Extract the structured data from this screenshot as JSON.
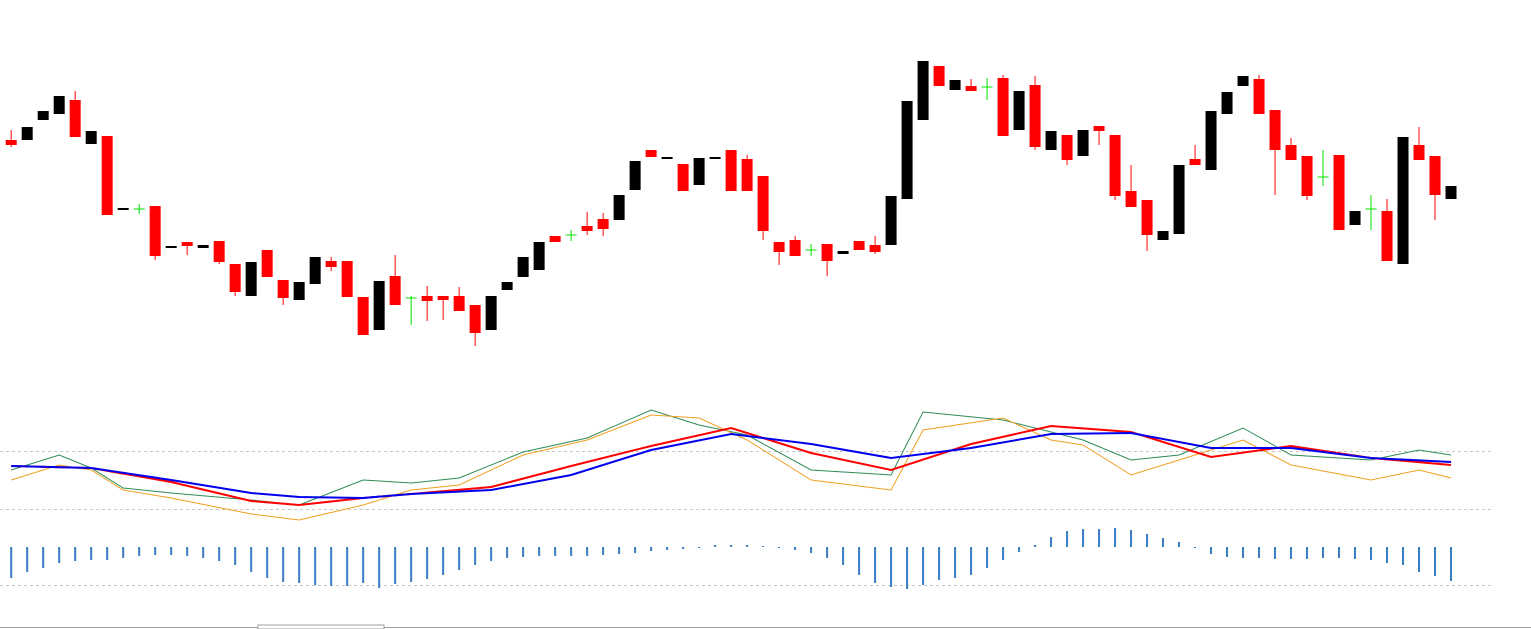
{
  "chart_data": [
    {
      "type": "candlestick",
      "x": [
        0,
        1,
        2,
        3,
        4,
        5,
        6,
        7,
        8,
        9,
        10,
        11,
        12,
        13,
        14,
        15,
        16,
        17,
        18,
        19,
        20,
        21,
        22,
        23,
        24,
        25,
        26,
        27,
        28,
        29,
        30,
        31,
        32,
        33,
        34,
        35,
        36,
        37,
        38,
        39,
        40,
        41,
        42,
        43,
        44,
        45,
        46,
        47,
        48,
        49,
        50,
        51,
        52,
        53,
        54,
        55,
        56,
        57,
        58,
        59,
        60,
        61,
        62,
        63,
        64,
        65,
        66,
        67,
        68,
        69,
        70,
        71,
        72,
        73,
        74,
        75,
        76,
        77,
        78,
        79,
        80,
        81,
        82,
        83,
        84,
        85,
        86,
        87,
        88,
        89,
        90
      ],
      "open": [
        260,
        260,
        280,
        286,
        300,
        256,
        264,
        190,
        191,
        194,
        152,
        158,
        152,
        159,
        136,
        104,
        150,
        120,
        100,
        116,
        139,
        139,
        103,
        70,
        124,
        102,
        104,
        104,
        104,
        95,
        70,
        110,
        123,
        130,
        164,
        165,
        174,
        181,
        180,
        210,
        250,
        241,
        236,
        215,
        241,
        250,
        241,
        224,
        158,
        160,
        150,
        156,
        146,
        159,
        155,
        155,
        201,
        280,
        334,
        310,
        314,
        313,
        322,
        270,
        315,
        250,
        265,
        244,
        274,
        265,
        209,
        200,
        160,
        166,
        241,
        230,
        286,
        314,
        321,
        290,
        255,
        244,
        223,
        245,
        175,
        191,
        189,
        136,
        255,
        244,
        201
      ],
      "high": [
        270,
        273,
        289,
        304,
        309,
        269,
        264,
        192,
        196,
        194,
        154,
        158,
        155,
        159,
        136,
        138,
        150,
        120,
        118,
        143,
        143,
        139,
        103,
        119,
        145,
        104,
        114,
        104,
        113,
        95,
        104,
        118,
        143,
        158,
        164,
        170,
        188,
        187,
        205,
        239,
        250,
        243,
        236,
        242,
        243,
        250,
        245,
        224,
        158,
        164,
        156,
        156,
        149,
        159,
        164,
        204,
        299,
        339,
        334,
        320,
        321,
        322,
        325,
        309,
        324,
        269,
        265,
        270,
        274,
        265,
        235,
        200,
        169,
        235,
        255,
        289,
        308,
        324,
        325,
        290,
        262,
        244,
        250,
        245,
        189,
        205,
        201,
        263,
        273,
        244,
        214
      ],
      "low": [
        253,
        260,
        280,
        286,
        263,
        256,
        185,
        190,
        186,
        140,
        152,
        145,
        152,
        136,
        104,
        104,
        123,
        95,
        100,
        116,
        129,
        103,
        65,
        70,
        95,
        75,
        79,
        80,
        89,
        54,
        70,
        110,
        123,
        130,
        158,
        159,
        165,
        164,
        180,
        210,
        243,
        241,
        209,
        215,
        241,
        209,
        209,
        160,
        135,
        144,
        144,
        124,
        146,
        150,
        146,
        155,
        201,
        280,
        314,
        310,
        309,
        300,
        264,
        270,
        250,
        250,
        235,
        244,
        255,
        200,
        193,
        149,
        160,
        166,
        235,
        230,
        286,
        314,
        286,
        205,
        240,
        200,
        214,
        170,
        175,
        170,
        139,
        136,
        240,
        180,
        201
      ],
      "close": [
        255,
        273,
        289,
        304,
        263,
        269,
        185,
        192,
        191,
        144,
        154,
        154,
        155,
        138,
        108,
        138,
        123,
        102,
        118,
        143,
        133,
        103,
        65,
        119,
        95,
        102,
        99,
        100,
        89,
        67,
        104,
        118,
        143,
        158,
        158,
        165,
        169,
        171,
        205,
        239,
        243,
        243,
        209,
        242,
        243,
        209,
        209,
        169,
        148,
        144,
        150,
        139,
        149,
        150,
        148,
        204,
        299,
        339,
        314,
        320,
        309,
        313,
        264,
        309,
        253,
        269,
        240,
        270,
        269,
        204,
        193,
        165,
        169,
        235,
        235,
        289,
        308,
        324,
        286,
        250,
        240,
        204,
        223,
        170,
        189,
        191,
        139,
        263,
        240,
        205,
        214
      ],
      "up_color": "#000000",
      "down_color": "#ff0000",
      "doji_color": "#00e000",
      "xlim": [
        -0.7,
        95
      ],
      "ylim": [
        40,
        360
      ]
    },
    {
      "type": "line",
      "series": [
        {
          "color": "#2e8b57",
          "x": [
            0,
            3,
            5,
            7,
            10,
            15,
            18,
            22,
            25,
            28,
            32,
            36,
            40,
            43,
            46,
            50,
            55,
            57,
            62,
            65,
            67,
            70,
            73,
            77,
            80,
            85,
            88,
            90
          ],
          "values": [
            130,
            145,
            132,
            112,
            107,
            100,
            95,
            120,
            117,
            122,
            148,
            162,
            190,
            175,
            165,
            130,
            125,
            188,
            180,
            168,
            160,
            140,
            145,
            172,
            145,
            140,
            150,
            145
          ]
        },
        {
          "color": "#f0a020",
          "x": [
            0,
            3,
            5,
            7,
            10,
            15,
            18,
            22,
            25,
            28,
            32,
            36,
            40,
            43,
            46,
            50,
            55,
            57,
            62,
            65,
            67,
            70,
            73,
            77,
            80,
            85,
            88,
            90
          ],
          "values": [
            120,
            135,
            130,
            110,
            102,
            86,
            80,
            95,
            110,
            115,
            145,
            160,
            185,
            182,
            160,
            120,
            110,
            170,
            182,
            160,
            155,
            125,
            140,
            160,
            135,
            120,
            130,
            122
          ]
        },
        {
          "color": "#ff0000",
          "x": [
            0,
            5,
            10,
            15,
            18,
            22,
            25,
            30,
            35,
            40,
            45,
            50,
            55,
            60,
            65,
            70,
            75,
            80,
            85,
            90
          ],
          "values": [
            134,
            132,
            118,
            99,
            95,
            102,
            106,
            113,
            134,
            154,
            172,
            147,
            130,
            156,
            174,
            168,
            143,
            154,
            142,
            135
          ]
        },
        {
          "color": "#0000ee",
          "x": [
            0,
            5,
            10,
            15,
            18,
            22,
            25,
            30,
            35,
            40,
            45,
            50,
            55,
            60,
            65,
            70,
            75,
            80,
            85,
            90
          ],
          "values": [
            134,
            132,
            120,
            107,
            103,
            102,
            106,
            110,
            125,
            150,
            166,
            156,
            142,
            152,
            166,
            167,
            152,
            152,
            142,
            138
          ]
        }
      ],
      "xlim": [
        -0.7,
        95
      ],
      "ylim": [
        75,
        200
      ]
    },
    {
      "type": "bar",
      "x": [
        0,
        1,
        2,
        3,
        4,
        5,
        6,
        7,
        8,
        9,
        10,
        11,
        12,
        13,
        14,
        15,
        16,
        17,
        18,
        19,
        20,
        21,
        22,
        23,
        24,
        25,
        26,
        27,
        28,
        29,
        30,
        31,
        32,
        33,
        34,
        35,
        36,
        37,
        38,
        39,
        40,
        41,
        42,
        43,
        44,
        45,
        46,
        47,
        48,
        49,
        50,
        51,
        52,
        53,
        54,
        55,
        56,
        57,
        58,
        59,
        60,
        61,
        62,
        63,
        64,
        65,
        66,
        67,
        68,
        69,
        70,
        71,
        72,
        73,
        74,
        75,
        76,
        77,
        78,
        79,
        80,
        81,
        82,
        83,
        84,
        85,
        86,
        87,
        88,
        89,
        90
      ],
      "values": [
        -31,
        -25,
        -21,
        -16,
        -14,
        -13,
        -13,
        -11,
        -9,
        -8,
        -8,
        -9,
        -11,
        -14,
        -18,
        -25,
        -31,
        -35,
        -36,
        -38,
        -39,
        -39,
        -36,
        -41,
        -37,
        -35,
        -32,
        -28,
        -23,
        -18,
        -14,
        -11,
        -10,
        -9,
        -9,
        -9,
        -9,
        -8,
        -7,
        -6,
        -4,
        -3,
        -2,
        -1,
        2,
        2,
        2,
        1,
        -1,
        -3,
        -6,
        -11,
        -18,
        -28,
        -36,
        -40,
        -42,
        -38,
        -33,
        -31,
        -28,
        -21,
        -13,
        -5,
        2,
        10,
        16,
        18,
        18,
        19,
        17,
        13,
        9,
        5,
        -1,
        -7,
        -10,
        -11,
        -11,
        -12,
        -12,
        -12,
        -11,
        -11,
        -12,
        -13,
        -16,
        -18,
        -25,
        -29,
        -34
      ],
      "color": "#3a7cc4",
      "xlim": [
        -0.7,
        95
      ],
      "ylim": [
        -45,
        25
      ]
    }
  ]
}
